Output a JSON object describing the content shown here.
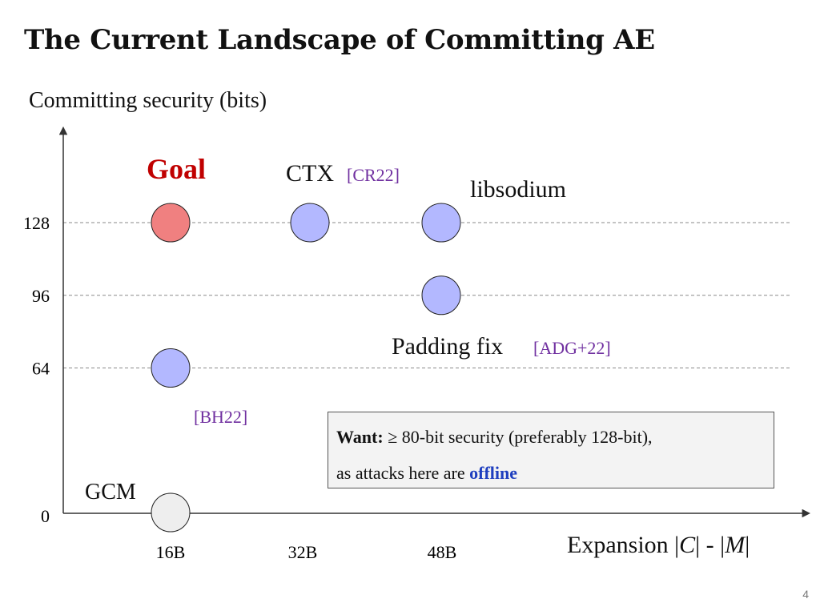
{
  "slide": {
    "title": "The Current Landscape of Committing AE",
    "page_number": "4"
  },
  "want_box": {
    "label": "Want:",
    "text1": " ≥ 80-bit security (preferably 128-bit),",
    "text2_prefix": "as attacks here are ",
    "emphasis": "offline"
  },
  "colors": {
    "goal_fill": "#f08080",
    "scheme_fill": "#b3b8ff",
    "gcm_fill": "#eeeeee",
    "goal_text": "#c00000",
    "citation_text": "#7030a0",
    "offline_text": "#1f3fbf"
  },
  "chart_data": {
    "type": "scatter",
    "xlabel_prefix": "Expansion |",
    "xlabel_var1": "C",
    "xlabel_mid": "| - |",
    "xlabel_var2": "M",
    "xlabel_suffix": "|",
    "ylabel": "Committing security (bits)",
    "x_ticks": [
      "16B",
      "32B",
      "48B"
    ],
    "y_ticks": [
      0,
      64,
      96,
      128
    ],
    "gridlines": [
      64,
      96,
      128
    ],
    "points": [
      {
        "id": "goal",
        "x": 16,
        "y": 128,
        "label": "Goal",
        "citation": "",
        "kind": "goal"
      },
      {
        "id": "ctx",
        "x": 32,
        "y": 128,
        "label": "CTX",
        "citation": "[CR22]",
        "kind": "scheme"
      },
      {
        "id": "libsodium",
        "x": 48,
        "y": 128,
        "label": "libsodium",
        "citation": "",
        "kind": "scheme"
      },
      {
        "id": "padding-fix",
        "x": 48,
        "y": 96,
        "label": "Padding fix",
        "citation": "[ADG+22]",
        "kind": "scheme"
      },
      {
        "id": "bh22",
        "x": 16,
        "y": 64,
        "label": "",
        "citation": "[BH22]",
        "kind": "scheme"
      },
      {
        "id": "gcm",
        "x": 16,
        "y": 0,
        "label": "GCM",
        "citation": "",
        "kind": "gcm"
      }
    ]
  }
}
